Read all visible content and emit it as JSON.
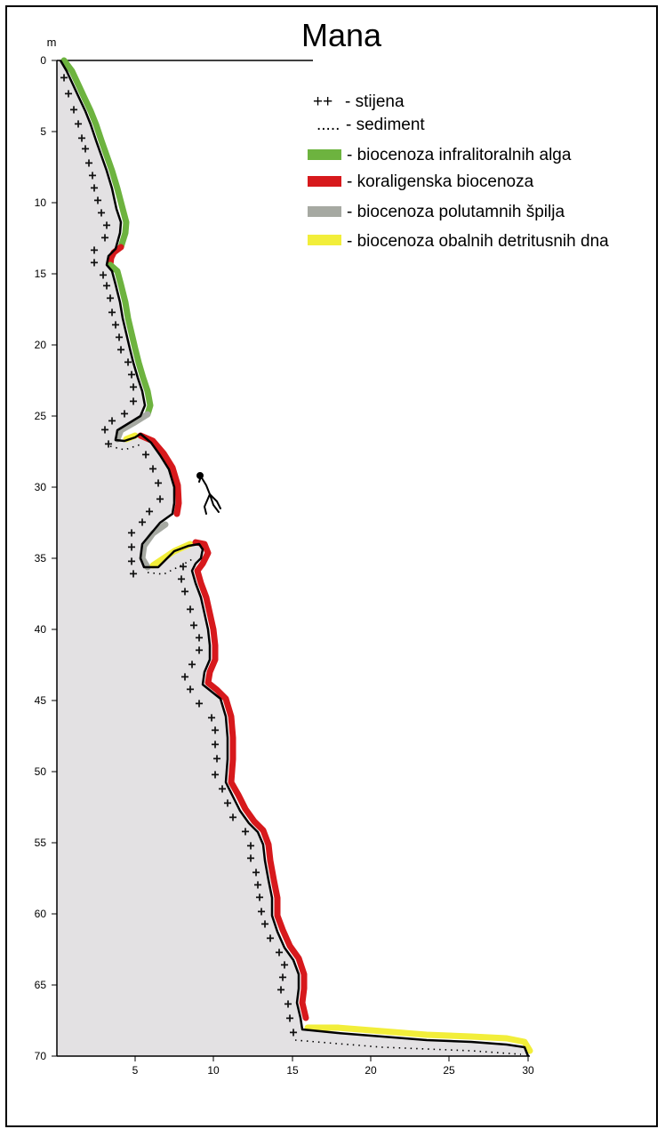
{
  "title": "Mana",
  "y_unit": "m",
  "y_ticks": [
    "0",
    "5",
    "10",
    "15",
    "20",
    "25",
    "30",
    "35",
    "40",
    "45",
    "50",
    "55",
    "60",
    "65",
    "70"
  ],
  "x_ticks": [
    "5",
    "10",
    "15",
    "20",
    "25",
    "30"
  ],
  "legend": {
    "rock": {
      "symbol": "++",
      "label": "- stijena"
    },
    "sediment": {
      "symbol": ".....",
      "label": "- sediment"
    },
    "items": [
      {
        "label": "- biocenoza infralitoralnih alga",
        "color": "#6db33f"
      },
      {
        "label": "- koraligenska biocenoza",
        "color": "#d7191c"
      },
      {
        "label": "- biocenoza polutamnih špilja",
        "color": "#a6a9a2"
      },
      {
        "label": "- biocenoza obalnih detritusnih dna",
        "color": "#f2ee3a"
      }
    ]
  },
  "colors": {
    "rock_fill": "#e3e1e3",
    "profile_line": "#000000",
    "algae": "#6db33f",
    "coralligenous": "#d7191c",
    "semi_dark_caves": "#a6a9a2",
    "coastal_detritic": "#f2ee3a"
  },
  "icons": [
    "diver-icon"
  ]
}
